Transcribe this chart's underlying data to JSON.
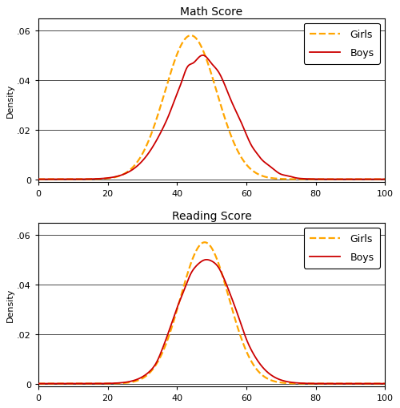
{
  "title1": "Math Score",
  "title2": "Reading Score",
  "ylabel": "Density",
  "xlim": [
    0,
    100
  ],
  "ylim": [
    -0.001,
    0.065
  ],
  "yticks": [
    0,
    0.02,
    0.04,
    0.06
  ],
  "ytick_labels": [
    "0",
    ".02",
    ".04",
    ".06"
  ],
  "xticks": [
    0,
    20,
    40,
    60,
    80,
    100
  ],
  "girls_color": "#FFA500",
  "boys_color": "#CC0000",
  "girls_label": "Girls",
  "boys_label": "Boys",
  "legend_fontsize": 9,
  "title_fontsize": 10,
  "axis_fontsize": 8,
  "bg_color": "#ffffff",
  "figsize": [
    5.0,
    5.1
  ],
  "dpi": 100
}
